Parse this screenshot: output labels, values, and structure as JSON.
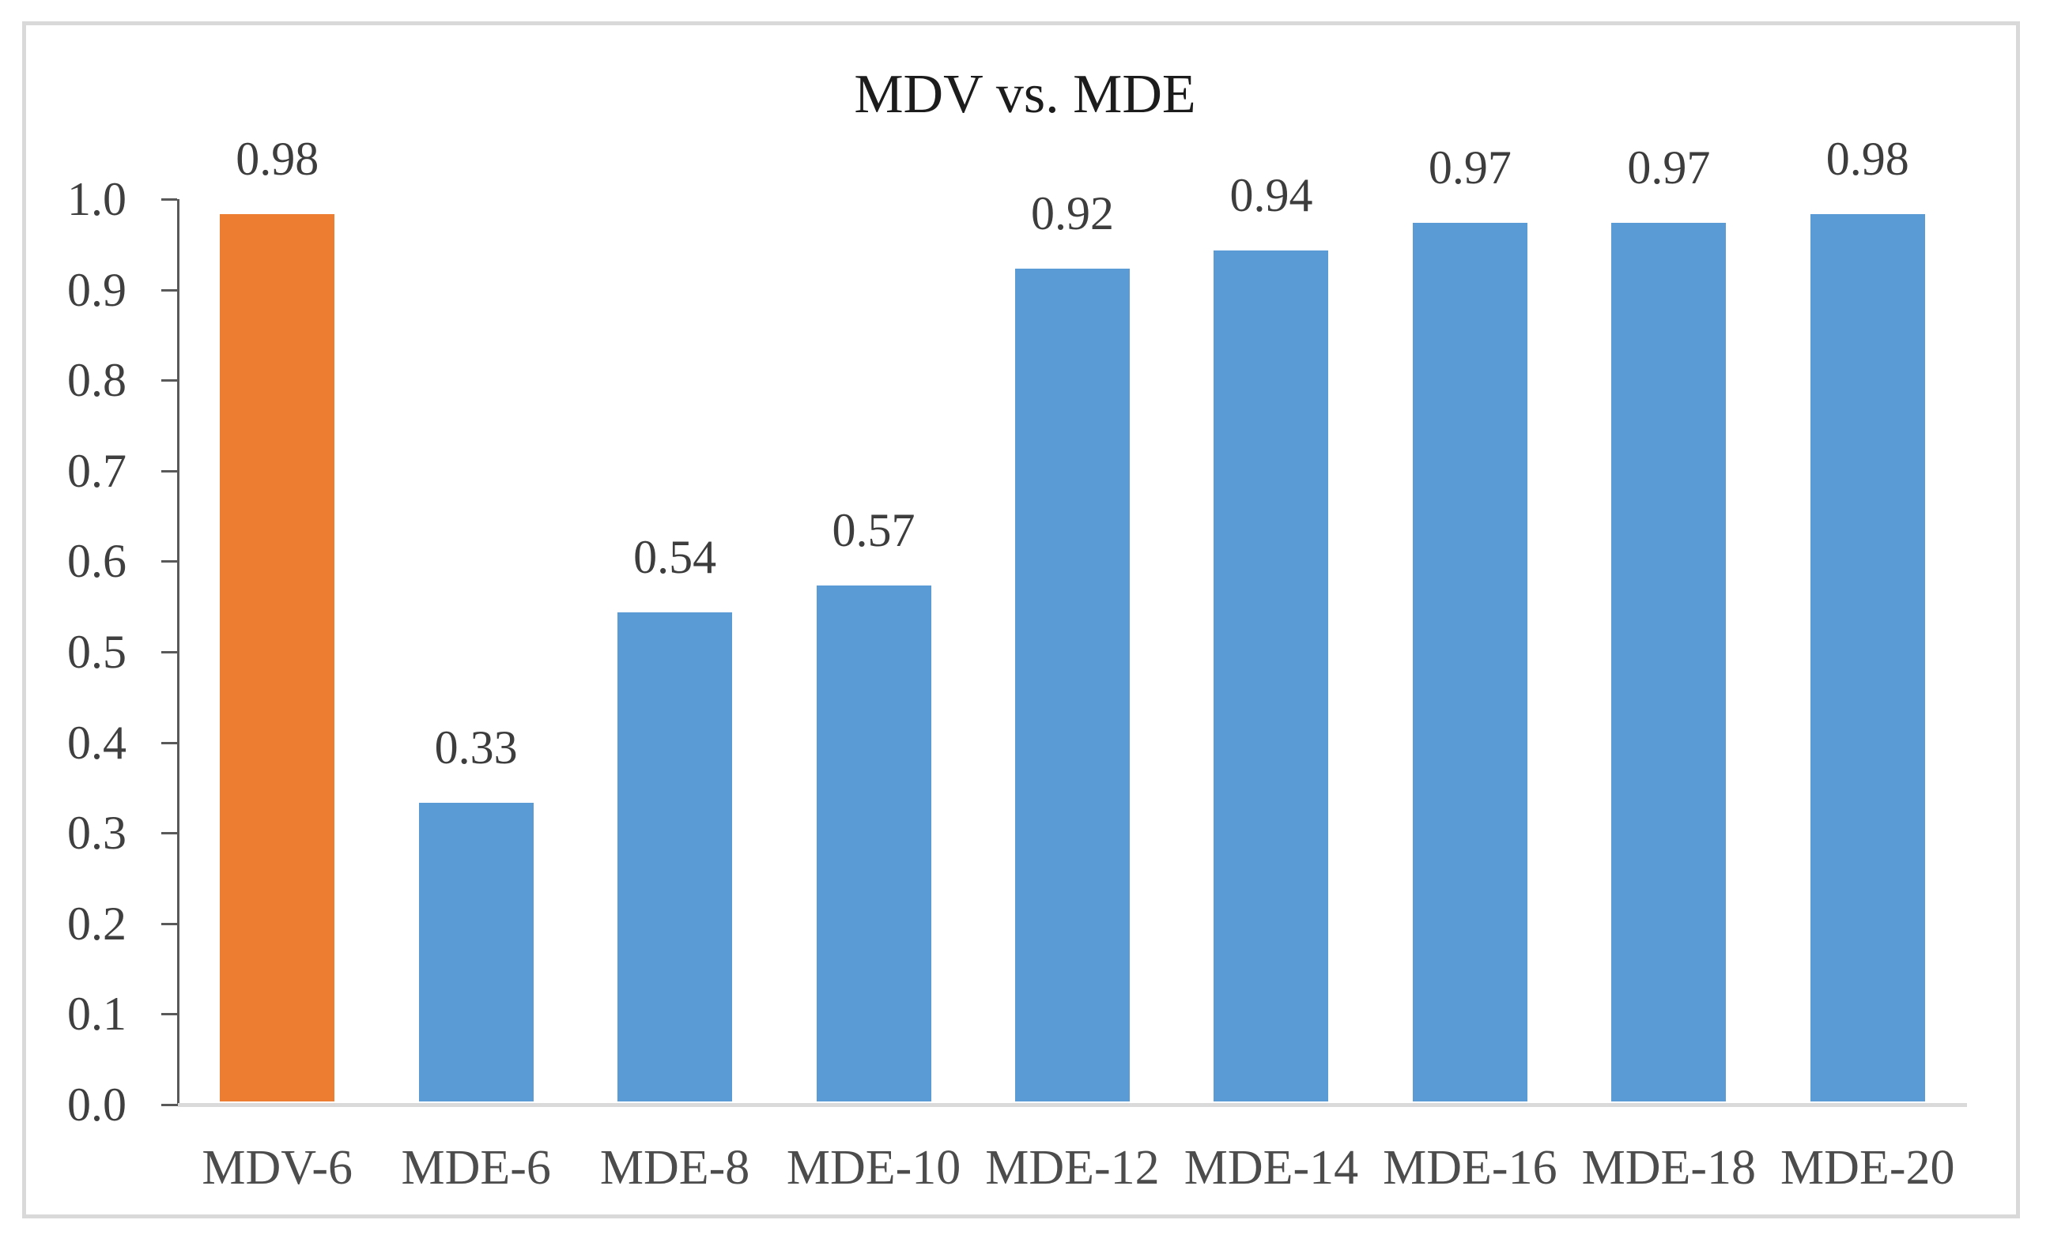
{
  "chart_data": {
    "type": "bar",
    "title": "MDV vs. MDE",
    "categories": [
      "MDV-6",
      "MDE-6",
      "MDE-8",
      "MDE-10",
      "MDE-12",
      "MDE-14",
      "MDE-16",
      "MDE-18",
      "MDE-20"
    ],
    "values": [
      0.98,
      0.33,
      0.54,
      0.57,
      0.92,
      0.94,
      0.97,
      0.97,
      0.98
    ],
    "data_labels": [
      "0.98",
      "0.33",
      "0.54",
      "0.57",
      "0.92",
      "0.94",
      "0.97",
      "0.97",
      "0.98"
    ],
    "highlight_index": 0,
    "yticks": [
      {
        "label": "0.0",
        "value": 0.0
      },
      {
        "label": "0.1",
        "value": 0.1
      },
      {
        "label": "0.2",
        "value": 0.2
      },
      {
        "label": "0.3",
        "value": 0.3
      },
      {
        "label": "0.4",
        "value": 0.4
      },
      {
        "label": "0.5",
        "value": 0.5
      },
      {
        "label": "0.6",
        "value": 0.6
      },
      {
        "label": "0.7",
        "value": 0.7
      },
      {
        "label": "0.8",
        "value": 0.8
      },
      {
        "label": "0.9",
        "value": 0.9
      },
      {
        "label": "1.0",
        "value": 1.0
      }
    ],
    "ylim": [
      0.0,
      1.0
    ],
    "xlabel": "",
    "ylabel": "",
    "grid": false,
    "legend": "none"
  },
  "colors": {
    "bar_default": "#5B9BD5",
    "bar_highlight": "#ED7D31",
    "axis_line": "#595959",
    "baseline": "#DADADA",
    "frame_border": "#D9D9D9",
    "title_text": "#1C1C1C",
    "value_label_text": "#3D3D3D",
    "tick_label_text": "#3F3F3F",
    "category_label_text": "#4C4C4C",
    "background": "#FFFFFF"
  }
}
